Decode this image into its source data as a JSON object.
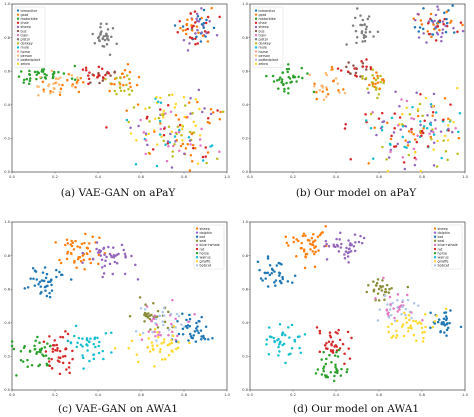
{
  "chart_data": [
    {
      "type": "scatter",
      "caption": "(a) VAE-GAN on aPaY",
      "xlim": [
        0.0,
        1.0
      ],
      "ylim": [
        0.0,
        1.0
      ],
      "x_ticks": [
        "0.0",
        "0.2",
        "0.4",
        "0.6",
        "0.8",
        "1.0"
      ],
      "y_ticks": [
        "0.0",
        "0.2",
        "0.4",
        "0.6",
        "0.8",
        "1.0"
      ],
      "legend_position": "top-left",
      "legend": [
        {
          "name": "tvmonitor",
          "color": "#1f77b4"
        },
        {
          "name": "goat",
          "color": "#ff7f0e"
        },
        {
          "name": "motorbike",
          "color": "#2ca02c"
        },
        {
          "name": "chair",
          "color": "#d62728"
        },
        {
          "name": "sheep",
          "color": "#9467bd"
        },
        {
          "name": "bus",
          "color": "#8c564b"
        },
        {
          "name": "train",
          "color": "#e377c2"
        },
        {
          "name": "pistol",
          "color": "#7f7f7f"
        },
        {
          "name": "donkey",
          "color": "#bcbd22"
        },
        {
          "name": "mule",
          "color": "#17becf"
        },
        {
          "name": "horse",
          "color": "#ff9896"
        },
        {
          "name": "person",
          "color": "#ffbb78"
        },
        {
          "name": "pottedplant",
          "color": "#c5b0d5"
        },
        {
          "name": "zebra",
          "color": "#ffd92f"
        }
      ],
      "clusters": [
        {
          "cx": 0.85,
          "cy": 0.86,
          "sx": 0.05,
          "sy": 0.05,
          "n": 70,
          "colors": [
            "#1f77b4",
            "#ff7f0e",
            "#9467bd",
            "#d62728"
          ]
        },
        {
          "cx": 0.42,
          "cy": 0.82,
          "sx": 0.025,
          "sy": 0.05,
          "n": 32,
          "colors": [
            "#7f7f7f"
          ]
        },
        {
          "cx": 0.13,
          "cy": 0.57,
          "sx": 0.06,
          "sy": 0.025,
          "n": 38,
          "colors": [
            "#2ca02c"
          ]
        },
        {
          "cx": 0.24,
          "cy": 0.52,
          "sx": 0.06,
          "sy": 0.035,
          "n": 40,
          "colors": [
            "#ff7f0e",
            "#ffbb78"
          ]
        },
        {
          "cx": 0.4,
          "cy": 0.57,
          "sx": 0.04,
          "sy": 0.025,
          "n": 28,
          "colors": [
            "#8c564b",
            "#d62728"
          ]
        },
        {
          "cx": 0.52,
          "cy": 0.53,
          "sx": 0.05,
          "sy": 0.04,
          "n": 34,
          "colors": [
            "#ff7f0e",
            "#bcbd22"
          ]
        },
        {
          "cx": 0.75,
          "cy": 0.25,
          "sx": 0.12,
          "sy": 0.12,
          "n": 170,
          "colors": [
            "#e377c2",
            "#d62728",
            "#9467bd",
            "#bcbd22",
            "#ff7f0e",
            "#17becf",
            "#ffd92f"
          ]
        }
      ]
    },
    {
      "type": "scatter",
      "caption": "(b) Our model on aPaY",
      "xlim": [
        0.0,
        1.0
      ],
      "ylim": [
        0.0,
        1.0
      ],
      "x_ticks": [
        "0.0",
        "0.2",
        "0.4",
        "0.6",
        "0.8",
        "1.0"
      ],
      "y_ticks": [
        "0.0",
        "0.2",
        "0.4",
        "0.6",
        "0.8",
        "1.0"
      ],
      "legend_position": "top-left",
      "legend": [
        {
          "name": "tvmonitor",
          "color": "#1f77b4"
        },
        {
          "name": "goat",
          "color": "#ff7f0e"
        },
        {
          "name": "motorbike",
          "color": "#2ca02c"
        },
        {
          "name": "chair",
          "color": "#d62728"
        },
        {
          "name": "sheep",
          "color": "#9467bd"
        },
        {
          "name": "bus",
          "color": "#8c564b"
        },
        {
          "name": "train",
          "color": "#e377c2"
        },
        {
          "name": "pistol",
          "color": "#7f7f7f"
        },
        {
          "name": "donkey",
          "color": "#bcbd22"
        },
        {
          "name": "mule",
          "color": "#17becf"
        },
        {
          "name": "horse",
          "color": "#ff9896"
        },
        {
          "name": "person",
          "color": "#ffbb78"
        },
        {
          "name": "pottedplant",
          "color": "#c5b0d5"
        },
        {
          "name": "zebra",
          "color": "#ffd92f"
        }
      ],
      "clusters": [
        {
          "cx": 0.86,
          "cy": 0.87,
          "sx": 0.05,
          "sy": 0.05,
          "n": 70,
          "colors": [
            "#1f77b4",
            "#ff7f0e",
            "#9467bd",
            "#d62728"
          ]
        },
        {
          "cx": 0.53,
          "cy": 0.86,
          "sx": 0.03,
          "sy": 0.04,
          "n": 30,
          "colors": [
            "#7f7f7f"
          ]
        },
        {
          "cx": 0.18,
          "cy": 0.55,
          "sx": 0.04,
          "sy": 0.035,
          "n": 36,
          "colors": [
            "#2ca02c"
          ]
        },
        {
          "cx": 0.36,
          "cy": 0.52,
          "sx": 0.04,
          "sy": 0.035,
          "n": 28,
          "colors": [
            "#ff7f0e",
            "#ffbb78"
          ]
        },
        {
          "cx": 0.49,
          "cy": 0.61,
          "sx": 0.035,
          "sy": 0.03,
          "n": 26,
          "colors": [
            "#8c564b",
            "#d62728"
          ]
        },
        {
          "cx": 0.58,
          "cy": 0.54,
          "sx": 0.04,
          "sy": 0.035,
          "n": 30,
          "colors": [
            "#ff7f0e",
            "#bcbd22"
          ]
        },
        {
          "cx": 0.8,
          "cy": 0.25,
          "sx": 0.12,
          "sy": 0.11,
          "n": 170,
          "colors": [
            "#e377c2",
            "#d62728",
            "#9467bd",
            "#bcbd22",
            "#ff7f0e",
            "#17becf",
            "#ffd92f"
          ]
        }
      ]
    },
    {
      "type": "scatter",
      "caption": "(c) VAE-GAN on AWA1",
      "xlim": [
        0.0,
        1.0
      ],
      "ylim": [
        0.0,
        1.0
      ],
      "x_ticks": [
        "0.0",
        "0.2",
        "0.4",
        "0.6",
        "0.8",
        "1.0"
      ],
      "y_ticks": [
        "0.0",
        "0.2",
        "0.4",
        "0.6",
        "0.8",
        "1.0"
      ],
      "legend_position": "top-right",
      "legend": [
        {
          "name": "sheep",
          "color": "#ff7f0e"
        },
        {
          "name": "dolphin",
          "color": "#9467bd"
        },
        {
          "name": "bat",
          "color": "#1f77b4"
        },
        {
          "name": "seal",
          "color": "#8c8c3a"
        },
        {
          "name": "blue+whale",
          "color": "#e377c2"
        },
        {
          "name": "rat",
          "color": "#d62728"
        },
        {
          "name": "horse",
          "color": "#2ca02c"
        },
        {
          "name": "walrus",
          "color": "#17becf"
        },
        {
          "name": "giraffe",
          "color": "#ffd92f"
        },
        {
          "name": "bobcat",
          "color": "#aec7e8"
        }
      ],
      "clusters": [
        {
          "cx": 0.32,
          "cy": 0.82,
          "sx": 0.05,
          "sy": 0.06,
          "n": 50,
          "colors": [
            "#ff7f0e"
          ]
        },
        {
          "cx": 0.45,
          "cy": 0.8,
          "sx": 0.05,
          "sy": 0.06,
          "n": 45,
          "colors": [
            "#9467bd"
          ]
        },
        {
          "cx": 0.15,
          "cy": 0.66,
          "sx": 0.04,
          "sy": 0.05,
          "n": 40,
          "colors": [
            "#1f77b4"
          ]
        },
        {
          "cx": 0.66,
          "cy": 0.44,
          "sx": 0.04,
          "sy": 0.04,
          "n": 30,
          "colors": [
            "#8c8c3a"
          ]
        },
        {
          "cx": 0.7,
          "cy": 0.38,
          "sx": 0.07,
          "sy": 0.06,
          "n": 50,
          "colors": [
            "#e377c2",
            "#aec7e8"
          ]
        },
        {
          "cx": 0.84,
          "cy": 0.35,
          "sx": 0.05,
          "sy": 0.05,
          "n": 40,
          "colors": [
            "#1f77b4"
          ]
        },
        {
          "cx": 0.68,
          "cy": 0.26,
          "sx": 0.07,
          "sy": 0.05,
          "n": 40,
          "colors": [
            "#ffd92f"
          ]
        },
        {
          "cx": 0.1,
          "cy": 0.23,
          "sx": 0.05,
          "sy": 0.06,
          "n": 40,
          "colors": [
            "#2ca02c"
          ]
        },
        {
          "cx": 0.22,
          "cy": 0.22,
          "sx": 0.04,
          "sy": 0.06,
          "n": 40,
          "colors": [
            "#d62728"
          ]
        },
        {
          "cx": 0.35,
          "cy": 0.26,
          "sx": 0.05,
          "sy": 0.06,
          "n": 40,
          "colors": [
            "#17becf"
          ]
        }
      ]
    },
    {
      "type": "scatter",
      "caption": "(d) Our model on AWA1",
      "xlim": [
        0.0,
        1.0
      ],
      "ylim": [
        0.0,
        1.0
      ],
      "x_ticks": [
        "0.0",
        "0.2",
        "0.4",
        "0.6",
        "0.8",
        "1.0"
      ],
      "y_ticks": [
        "0.0",
        "0.2",
        "0.4",
        "0.6",
        "0.8",
        "1.0"
      ],
      "legend_position": "top-right",
      "legend": [
        {
          "name": "sheep",
          "color": "#ff7f0e"
        },
        {
          "name": "dolphin",
          "color": "#9467bd"
        },
        {
          "name": "bat",
          "color": "#1f77b4"
        },
        {
          "name": "seal",
          "color": "#8c8c3a"
        },
        {
          "name": "blue+whale",
          "color": "#e377c2"
        },
        {
          "name": "rat",
          "color": "#d62728"
        },
        {
          "name": "horse",
          "color": "#2ca02c"
        },
        {
          "name": "walrus",
          "color": "#17becf"
        },
        {
          "name": "giraffe",
          "color": "#ffd92f"
        },
        {
          "name": "bobcat",
          "color": "#aec7e8"
        }
      ],
      "clusters": [
        {
          "cx": 0.28,
          "cy": 0.87,
          "sx": 0.05,
          "sy": 0.05,
          "n": 45,
          "colors": [
            "#ff7f0e"
          ]
        },
        {
          "cx": 0.44,
          "cy": 0.86,
          "sx": 0.04,
          "sy": 0.05,
          "n": 40,
          "colors": [
            "#9467bd"
          ]
        },
        {
          "cx": 0.12,
          "cy": 0.69,
          "sx": 0.04,
          "sy": 0.05,
          "n": 35,
          "colors": [
            "#1f77b4"
          ]
        },
        {
          "cx": 0.6,
          "cy": 0.6,
          "sx": 0.04,
          "sy": 0.035,
          "n": 30,
          "colors": [
            "#8c8c3a"
          ]
        },
        {
          "cx": 0.68,
          "cy": 0.49,
          "sx": 0.06,
          "sy": 0.05,
          "n": 45,
          "colors": [
            "#e377c2",
            "#aec7e8"
          ]
        },
        {
          "cx": 0.9,
          "cy": 0.4,
          "sx": 0.04,
          "sy": 0.035,
          "n": 30,
          "colors": [
            "#1f77b4"
          ]
        },
        {
          "cx": 0.75,
          "cy": 0.38,
          "sx": 0.06,
          "sy": 0.05,
          "n": 40,
          "colors": [
            "#ffd92f"
          ]
        },
        {
          "cx": 0.16,
          "cy": 0.28,
          "sx": 0.05,
          "sy": 0.05,
          "n": 40,
          "colors": [
            "#17becf"
          ]
        },
        {
          "cx": 0.4,
          "cy": 0.28,
          "sx": 0.04,
          "sy": 0.04,
          "n": 35,
          "colors": [
            "#d62728"
          ]
        },
        {
          "cx": 0.38,
          "cy": 0.12,
          "sx": 0.04,
          "sy": 0.05,
          "n": 35,
          "colors": [
            "#2ca02c"
          ]
        }
      ]
    }
  ]
}
